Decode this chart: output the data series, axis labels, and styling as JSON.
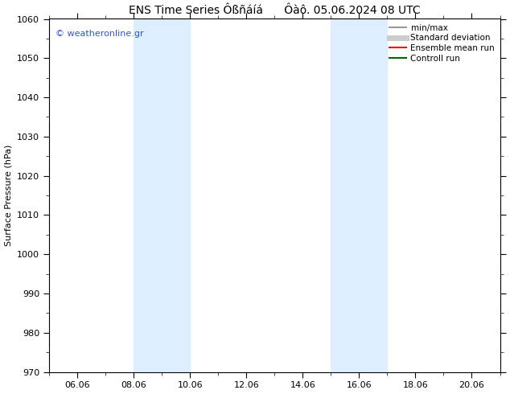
{
  "title": "ENS Time Series Ôßñáíá      Ôàô. 05.06.2024 08 UTC",
  "ylabel": "Surface Pressure (hPa)",
  "ylim": [
    970,
    1060
  ],
  "yticks": [
    970,
    980,
    990,
    1000,
    1010,
    1020,
    1030,
    1040,
    1050,
    1060
  ],
  "xstart": "2024-06-05",
  "xend": "2024-06-21",
  "xtick_labels": [
    "06.06",
    "08.06",
    "10.06",
    "12.06",
    "14.06",
    "16.06",
    "18.06",
    "20.06"
  ],
  "xtick_days": [
    6,
    8,
    10,
    12,
    14,
    16,
    18,
    20
  ],
  "shaded_regions": [
    {
      "day0": 8,
      "day1": 10,
      "color": "#ddeeff"
    },
    {
      "day0": 15,
      "day1": 17,
      "color": "#ddeeff"
    }
  ],
  "watermark_text": "© weatheronline.gr",
  "watermark_color": "#3355cc",
  "background_color": "#ffffff",
  "legend_items": [
    {
      "label": "min/max",
      "color": "#999999",
      "lw": 1.5
    },
    {
      "label": "Standard deviation",
      "color": "#cccccc",
      "lw": 5
    },
    {
      "label": "Ensemble mean run",
      "color": "#ff0000",
      "lw": 1.5
    },
    {
      "label": "Controll run",
      "color": "#006600",
      "lw": 1.5
    }
  ],
  "title_fontsize": 10,
  "axis_label_fontsize": 8,
  "tick_fontsize": 8
}
